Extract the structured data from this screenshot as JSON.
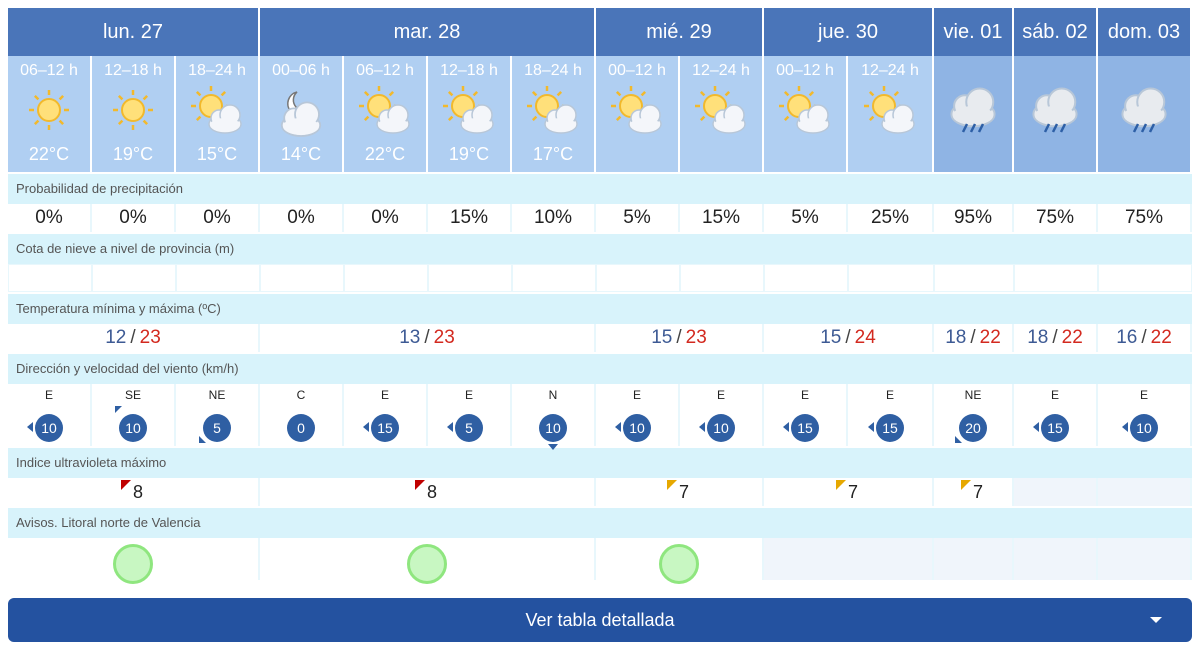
{
  "days": [
    {
      "label": "lun. 27"
    },
    {
      "label": "mar. 28"
    },
    {
      "label": "mié. 29"
    },
    {
      "label": "jue. 30"
    },
    {
      "label": "vie. 01"
    },
    {
      "label": "sáb. 02"
    },
    {
      "label": "dom. 03"
    }
  ],
  "periods": [
    {
      "label": "06–12 h",
      "temp": "22°C",
      "icon": "sun-icon"
    },
    {
      "label": "12–18 h",
      "temp": "19°C",
      "icon": "sun-icon"
    },
    {
      "label": "18–24 h",
      "temp": "15°C",
      "icon": "sun-cloud-icon"
    },
    {
      "label": "00–06 h",
      "temp": "14°C",
      "icon": "moon-cloud-icon"
    },
    {
      "label": "06–12 h",
      "temp": "22°C",
      "icon": "sun-cloud-icon"
    },
    {
      "label": "12–18 h",
      "temp": "19°C",
      "icon": "sun-cloud-icon"
    },
    {
      "label": "18–24 h",
      "temp": "17°C",
      "icon": "sun-cloud-icon"
    },
    {
      "label": "00–12 h",
      "temp": "",
      "icon": "sun-cloud-icon"
    },
    {
      "label": "12–24 h",
      "temp": "",
      "icon": "sun-cloud-icon"
    },
    {
      "label": "00–12 h",
      "temp": "",
      "icon": "sun-cloud-icon"
    },
    {
      "label": "12–24 h",
      "temp": "",
      "icon": "sun-cloud-icon"
    },
    {
      "label": "",
      "temp": "",
      "icon": "rain-cloud-icon"
    },
    {
      "label": "",
      "temp": "",
      "icon": "rain-cloud-icon"
    },
    {
      "label": "",
      "temp": "",
      "icon": "rain-cloud-icon"
    }
  ],
  "labels": {
    "precip": "Probabilidad de precipitación",
    "snow": "Cota de nieve a nivel de provincia (m)",
    "temp": "Temperatura mínima y máxima (ºC)",
    "wind": "Dirección y velocidad del viento (km/h)",
    "uv": "Indice ultravioleta máximo",
    "warnings": "Avisos. Litoral norte de Valencia"
  },
  "precip": [
    "0%",
    "0%",
    "0%",
    "0%",
    "0%",
    "15%",
    "10%",
    "5%",
    "15%",
    "5%",
    "25%",
    "95%",
    "75%",
    "75%"
  ],
  "temps": [
    {
      "min": "12",
      "max": "23"
    },
    {
      "min": "13",
      "max": "23"
    },
    {
      "min": "15",
      "max": "23"
    },
    {
      "min": "15",
      "max": "24"
    },
    {
      "min": "18",
      "max": "22"
    },
    {
      "min": "18",
      "max": "22"
    },
    {
      "min": "16",
      "max": "22"
    }
  ],
  "temp_sep": "/",
  "wind": [
    {
      "dir": "E",
      "speed": "10"
    },
    {
      "dir": "SE",
      "speed": "10"
    },
    {
      "dir": "NE",
      "speed": "5"
    },
    {
      "dir": "C",
      "speed": "0"
    },
    {
      "dir": "E",
      "speed": "15"
    },
    {
      "dir": "E",
      "speed": "5"
    },
    {
      "dir": "N",
      "speed": "10"
    },
    {
      "dir": "E",
      "speed": "10"
    },
    {
      "dir": "E",
      "speed": "10"
    },
    {
      "dir": "E",
      "speed": "15"
    },
    {
      "dir": "E",
      "speed": "15"
    },
    {
      "dir": "NE",
      "speed": "20"
    },
    {
      "dir": "E",
      "speed": "15"
    },
    {
      "dir": "E",
      "speed": "10"
    }
  ],
  "uv": [
    {
      "value": "8",
      "level": "red"
    },
    {
      "value": "8",
      "level": "red"
    },
    {
      "value": "7",
      "level": "yellow"
    },
    {
      "value": "7",
      "level": "yellow"
    },
    {
      "value": "7",
      "level": "yellow"
    },
    {
      "value": "",
      "level": ""
    },
    {
      "value": "",
      "level": ""
    }
  ],
  "warnings": [
    "green",
    "green",
    "green",
    "",
    "",
    "",
    ""
  ],
  "colors": {
    "header": "#4a75b9",
    "button": "#2452a0",
    "tmax": "#d3291f",
    "tmin": "#3d5a94",
    "warning_green": "#c8f7c2"
  },
  "button": {
    "label": "Ver tabla detallada",
    "icon": "chevron-down-icon"
  }
}
